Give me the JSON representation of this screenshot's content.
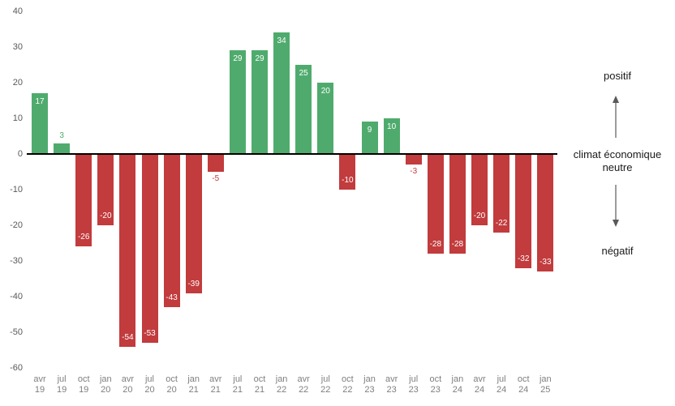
{
  "chart_data": {
    "type": "bar",
    "title": "",
    "xlabel": "",
    "ylabel": "",
    "categories": [
      "avr 19",
      "jul 19",
      "oct 19",
      "jan 20",
      "avr 20",
      "jul 20",
      "oct 20",
      "jan 21",
      "avr 21",
      "jul 21",
      "oct 21",
      "jan 22",
      "avr 22",
      "jul 22",
      "oct 22",
      "jan 23",
      "avr 23",
      "jul 23",
      "oct 23",
      "jan 24",
      "avr 24",
      "jul 24",
      "oct 24",
      "jan 25"
    ],
    "values": [
      17,
      3,
      -26,
      -20,
      -54,
      -53,
      -43,
      -39,
      -5,
      29,
      29,
      34,
      25,
      20,
      -10,
      9,
      10,
      -3,
      -28,
      -28,
      -20,
      -22,
      -32,
      -33
    ],
    "y_ticks": [
      40,
      30,
      20,
      10,
      0,
      -10,
      -20,
      -30,
      -40,
      -50,
      -60
    ],
    "ylim": [
      -60,
      40
    ],
    "grid": false,
    "legend": false,
    "colors": {
      "positive": "#4fab6d",
      "negative": "#c23b3d",
      "label_inside": "#ffffff",
      "axis_line": "#000000",
      "y_tick_text": "#595959",
      "x_tick_text": "#7f7f7f"
    }
  },
  "annotations": {
    "positif": "positif",
    "neutre_line1": "climat économique",
    "neutre_line2": "neutre",
    "negatif": "négatif"
  }
}
